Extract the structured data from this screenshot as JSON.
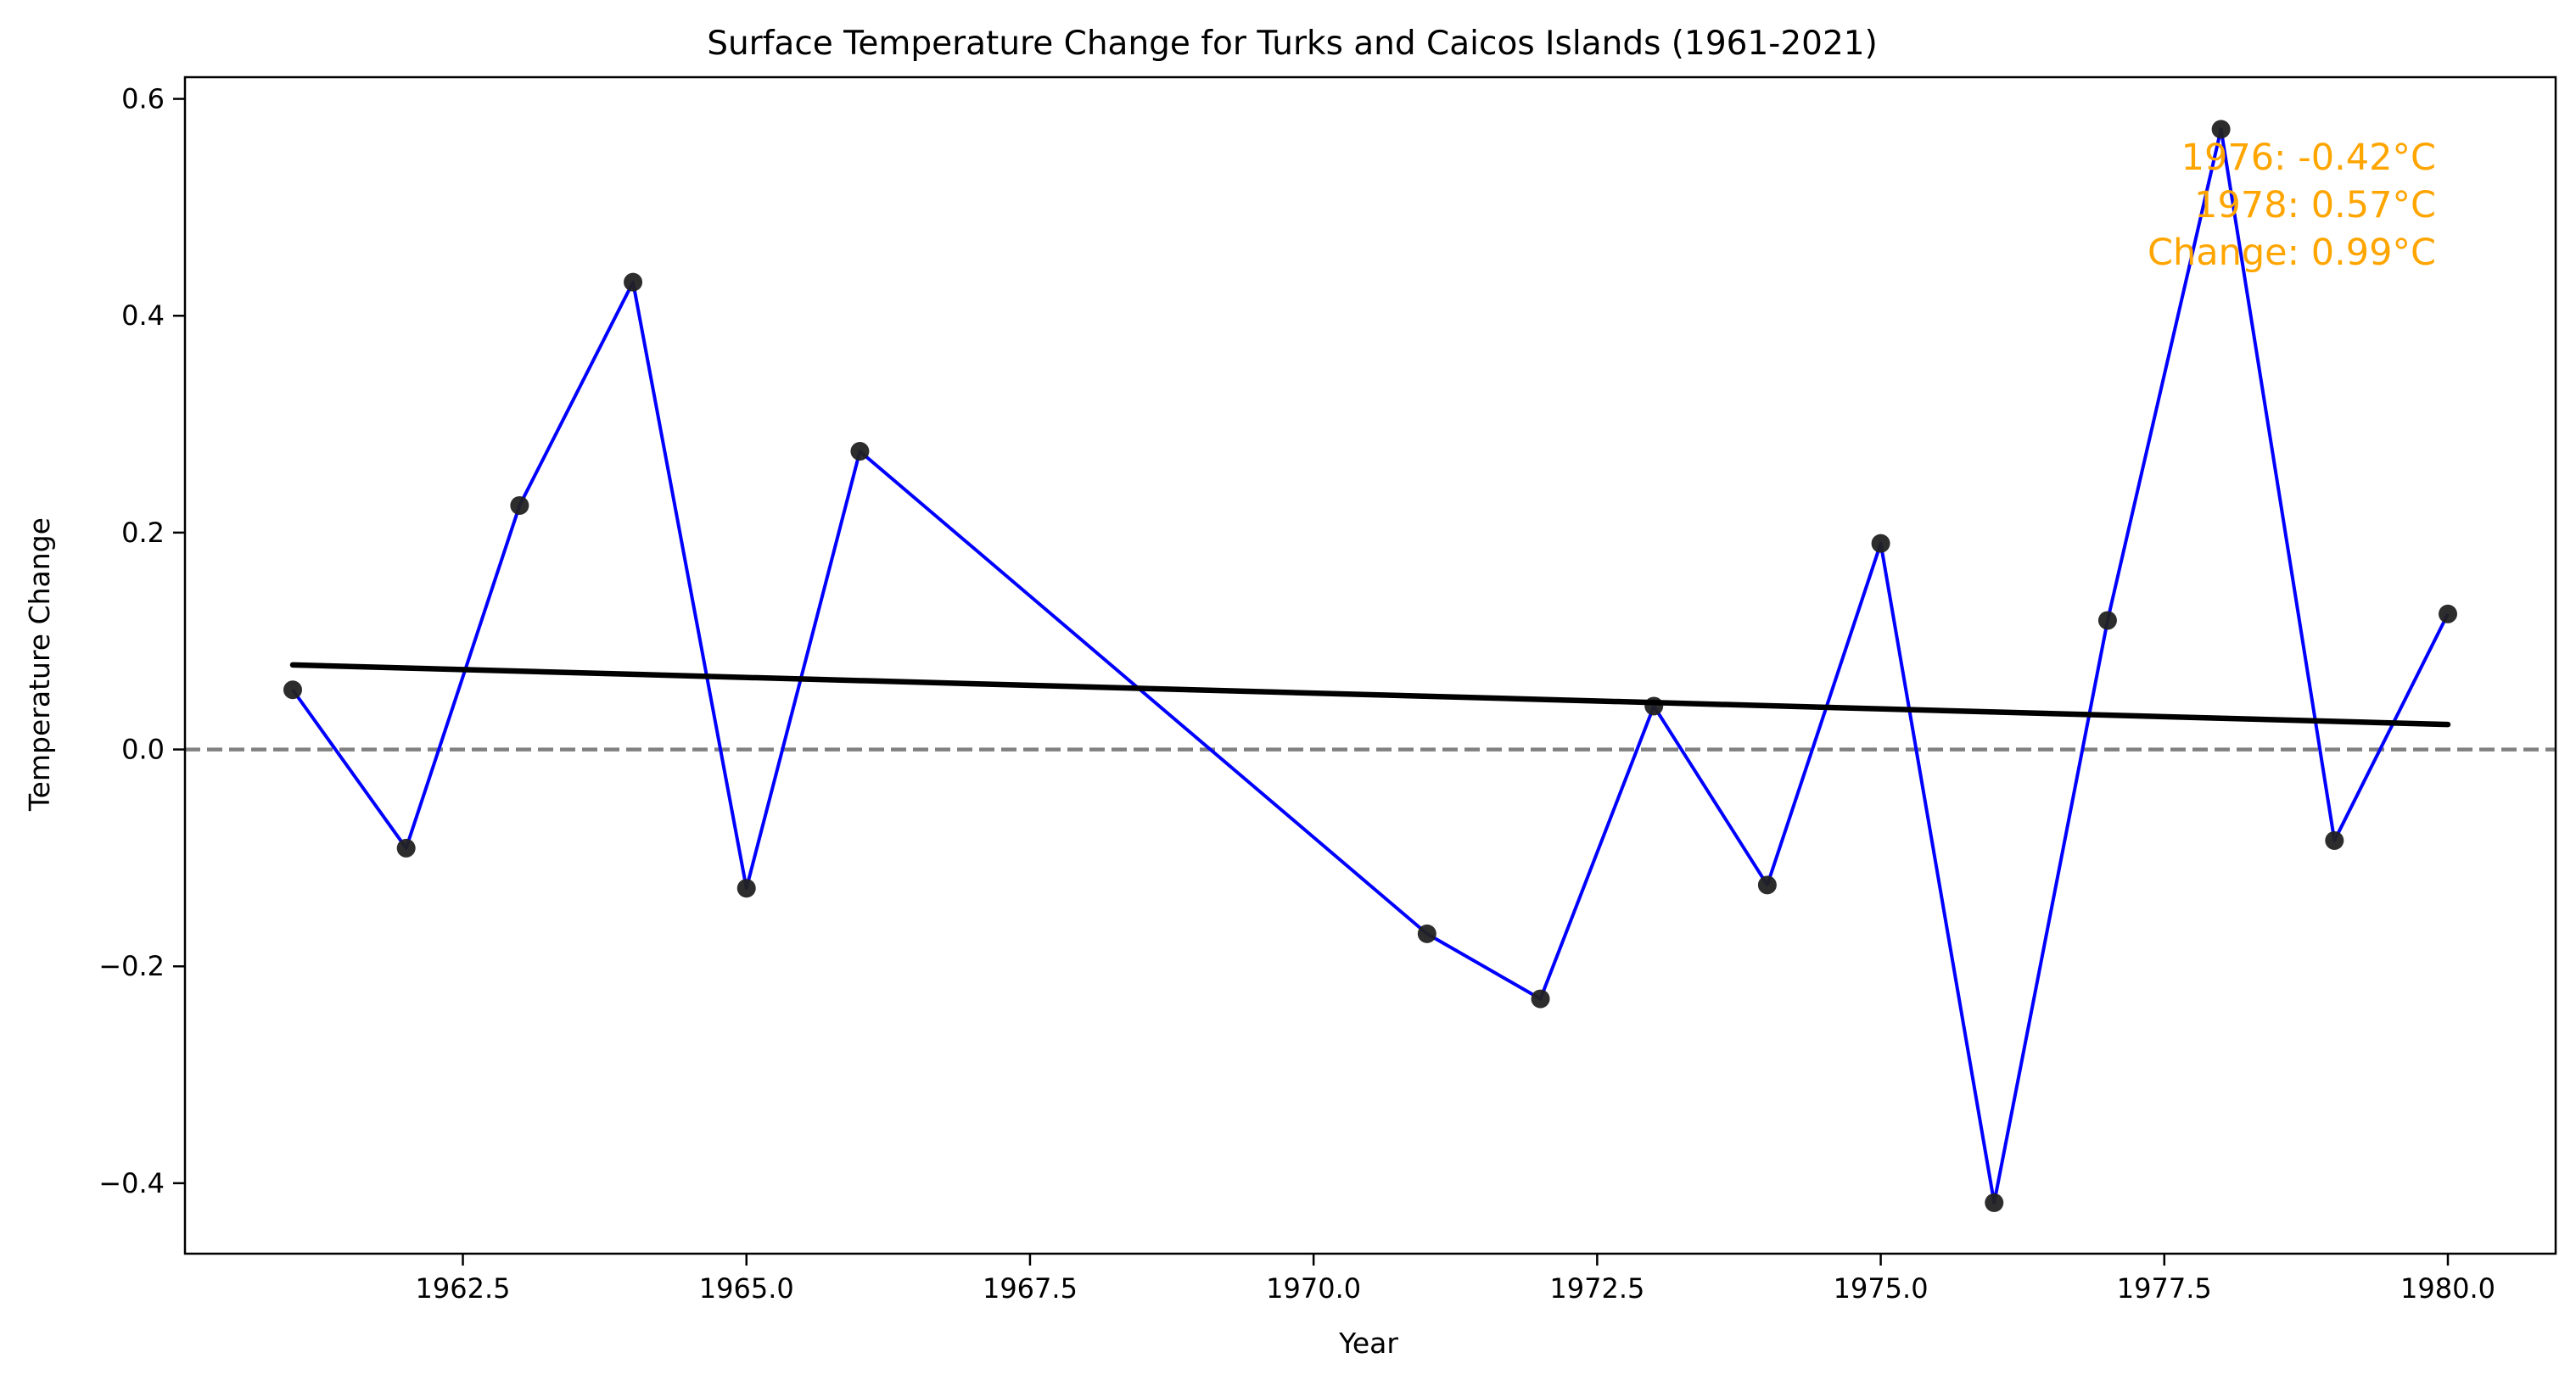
{
  "chart_data": {
    "type": "line",
    "title": "Surface Temperature Change for Turks and Caicos Islands (1961-2021)",
    "xlabel": "Year",
    "ylabel": "Temperature Change",
    "xlim": [
      1960.05,
      1980.95
    ],
    "ylim": [
      -0.465,
      0.62
    ],
    "x_ticks": [
      1962.5,
      1965.0,
      1967.5,
      1970.0,
      1972.5,
      1975.0,
      1977.5,
      1980.0
    ],
    "x_tick_labels": [
      "1962.5",
      "1965.0",
      "1967.5",
      "1970.0",
      "1972.5",
      "1975.0",
      "1977.5",
      "1980.0"
    ],
    "y_ticks": [
      -0.4,
      -0.2,
      0.0,
      0.2,
      0.4,
      0.6
    ],
    "y_tick_labels": [
      "−0.4",
      "−0.2",
      "0.0",
      "0.2",
      "0.4",
      "0.6"
    ],
    "grid": false,
    "series": [
      {
        "x": [
          1961,
          1962,
          1963,
          1964,
          1965,
          1966,
          1971,
          1972,
          1973,
          1974,
          1975,
          1976,
          1977,
          1978,
          1979,
          1980
        ],
        "y": [
          0.055,
          -0.091,
          0.225,
          0.431,
          -0.128,
          0.275,
          -0.17,
          -0.23,
          0.04,
          -0.125,
          0.19,
          -0.418,
          0.119,
          0.572,
          -0.084,
          0.125
        ],
        "line_color": "#0000ff",
        "marker_color": "#222222"
      }
    ],
    "trend_line": {
      "x": [
        1961,
        1980
      ],
      "y": [
        0.078,
        0.023
      ],
      "color": "#000000"
    },
    "reference_line": {
      "y": 0.0,
      "style": "dashed",
      "color": "#808080"
    },
    "annotation": {
      "lines": [
        "1976: -0.42°C",
        "1978: 0.57°C",
        "Change: 0.99°C"
      ],
      "color": "#ffa500",
      "placement": "top-right"
    }
  }
}
